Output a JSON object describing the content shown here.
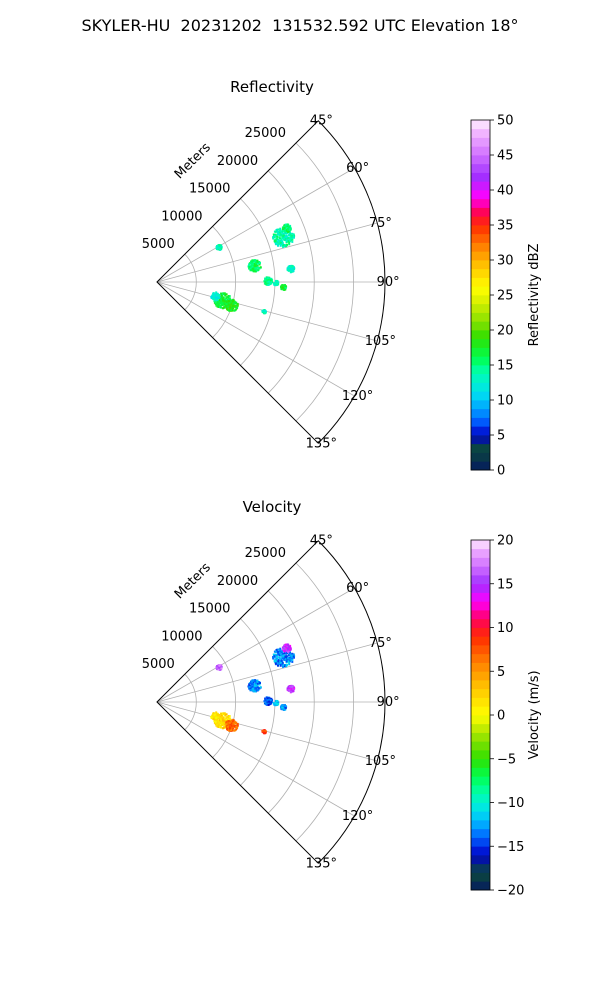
{
  "figure": {
    "suptitle": "SKYLER-HU  20231202  131532.592 UTC Elevation 18°"
  },
  "chart_data": [
    {
      "type": "polar-sector",
      "title": "Reflectivity",
      "radial_label": "Meters",
      "radial_ticks": [
        5000,
        10000,
        15000,
        20000,
        25000
      ],
      "radial_tick_labels": [
        "5000",
        "10000",
        "15000",
        "20000",
        "25000"
      ],
      "radial_range": [
        0,
        29000
      ],
      "angle_ticks": [
        45,
        60,
        75,
        90,
        105,
        120,
        135
      ],
      "angle_tick_labels": [
        "45°",
        "60°",
        "75°",
        "90°",
        "105°",
        "120°",
        "135°"
      ],
      "angle_range": [
        45,
        135
      ],
      "grid": true,
      "colorbar": {
        "label": "Reflectivity dBZ",
        "range": [
          0,
          50
        ],
        "ticks": [
          0,
          5,
          10,
          15,
          20,
          25,
          30,
          35,
          40,
          45,
          50
        ],
        "tick_labels": [
          "0",
          "5",
          "10",
          "15",
          "20",
          "25",
          "30",
          "35",
          "40",
          "45",
          "50"
        ],
        "stops": [
          [
            0,
            "#051a60"
          ],
          [
            3,
            "#0b4a3a"
          ],
          [
            5,
            "#0000c8"
          ],
          [
            7,
            "#0060ff"
          ],
          [
            9,
            "#00a8ff"
          ],
          [
            11,
            "#00e0f0"
          ],
          [
            14,
            "#00ffb0"
          ],
          [
            16,
            "#00ff50"
          ],
          [
            19,
            "#30e000"
          ],
          [
            21,
            "#80e000"
          ],
          [
            24,
            "#d8f000"
          ],
          [
            26,
            "#ffff00"
          ],
          [
            29,
            "#ffc800"
          ],
          [
            32,
            "#ff8000"
          ],
          [
            35,
            "#ff2a00"
          ],
          [
            37,
            "#ff0060"
          ],
          [
            39,
            "#ff00ff"
          ],
          [
            42,
            "#a030ff"
          ],
          [
            45,
            "#d070ff"
          ],
          [
            48,
            "#f0b0ff"
          ],
          [
            50,
            "#fff0ff"
          ]
        ]
      },
      "echoes": [
        {
          "az": 70,
          "r": 17000,
          "size": 1500,
          "value": 14
        },
        {
          "az": 67,
          "r": 17800,
          "size": 600,
          "value": 16
        },
        {
          "az": 60,
          "r": 9000,
          "size": 400,
          "value": 13
        },
        {
          "az": 80,
          "r": 12500,
          "size": 900,
          "value": 16
        },
        {
          "az": 84,
          "r": 17000,
          "size": 500,
          "value": 13
        },
        {
          "az": 89,
          "r": 14000,
          "size": 600,
          "value": 15
        },
        {
          "az": 92,
          "r": 16000,
          "size": 400,
          "value": 17
        },
        {
          "az": 90,
          "r": 15000,
          "size": 350,
          "value": 13
        },
        {
          "az": 105,
          "r": 8500,
          "size": 1200,
          "value": 17
        },
        {
          "az": 107,
          "r": 9800,
          "size": 900,
          "value": 18
        },
        {
          "az": 103,
          "r": 7500,
          "size": 600,
          "value": 12
        },
        {
          "az": 105,
          "r": 14000,
          "size": 300,
          "value": 14
        }
      ]
    },
    {
      "type": "polar-sector",
      "title": "Velocity",
      "radial_label": "Meters",
      "radial_ticks": [
        5000,
        10000,
        15000,
        20000,
        25000
      ],
      "radial_tick_labels": [
        "5000",
        "10000",
        "15000",
        "20000",
        "25000"
      ],
      "radial_range": [
        0,
        29000
      ],
      "angle_ticks": [
        45,
        60,
        75,
        90,
        105,
        120,
        135
      ],
      "angle_tick_labels": [
        "45°",
        "60°",
        "75°",
        "90°",
        "105°",
        "120°",
        "135°"
      ],
      "angle_range": [
        45,
        135
      ],
      "grid": true,
      "colorbar": {
        "label": "Velocity (m/s)",
        "range": [
          -20,
          20
        ],
        "ticks": [
          -20,
          -15,
          -10,
          -5,
          0,
          5,
          10,
          15,
          20
        ],
        "tick_labels": [
          "−20",
          "−15",
          "−10",
          "−5",
          "0",
          "5",
          "10",
          "15",
          "20"
        ],
        "stops": [
          [
            -20,
            "#051a60"
          ],
          [
            -18,
            "#0b4a3a"
          ],
          [
            -16,
            "#0000c8"
          ],
          [
            -14,
            "#0060ff"
          ],
          [
            -12.5,
            "#00a8ff"
          ],
          [
            -11,
            "#00e0f0"
          ],
          [
            -9,
            "#00ffb0"
          ],
          [
            -7,
            "#00ff50"
          ],
          [
            -5,
            "#30e000"
          ],
          [
            -3,
            "#80e000"
          ],
          [
            -1,
            "#d8f000"
          ],
          [
            0,
            "#ffff00"
          ],
          [
            3,
            "#ffc800"
          ],
          [
            6,
            "#ff8000"
          ],
          [
            9,
            "#ff2a00"
          ],
          [
            11,
            "#ff0060"
          ],
          [
            13,
            "#ff00ff"
          ],
          [
            15,
            "#a030ff"
          ],
          [
            17,
            "#d070ff"
          ],
          [
            19,
            "#f0b0ff"
          ],
          [
            20,
            "#fff0ff"
          ]
        ]
      },
      "echoes": [
        {
          "az": 70,
          "r": 17000,
          "size": 1500,
          "value": -13
        },
        {
          "az": 67,
          "r": 17800,
          "size": 600,
          "value": 15
        },
        {
          "az": 60,
          "r": 9000,
          "size": 400,
          "value": 16
        },
        {
          "az": 80,
          "r": 12500,
          "size": 900,
          "value": -13
        },
        {
          "az": 84,
          "r": 17000,
          "size": 500,
          "value": 15
        },
        {
          "az": 89,
          "r": 14000,
          "size": 600,
          "value": -14
        },
        {
          "az": 92,
          "r": 16000,
          "size": 400,
          "value": -13
        },
        {
          "az": 90,
          "r": 15000,
          "size": 350,
          "value": -12
        },
        {
          "az": 105,
          "r": 8500,
          "size": 1200,
          "value": 2
        },
        {
          "az": 107,
          "r": 9800,
          "size": 900,
          "value": 7
        },
        {
          "az": 103,
          "r": 7500,
          "size": 600,
          "value": 1
        },
        {
          "az": 105,
          "r": 14000,
          "size": 300,
          "value": 9
        }
      ]
    }
  ]
}
